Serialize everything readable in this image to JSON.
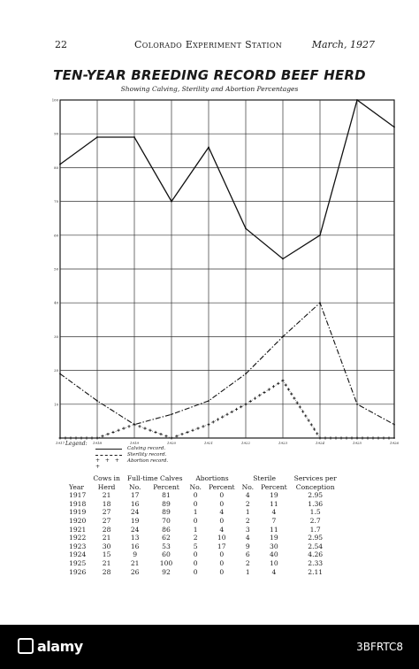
{
  "running_head": {
    "page_number": "22",
    "station": "Colorado Experiment Station",
    "date": "March, 1927"
  },
  "chart_data": {
    "type": "line",
    "title": "TEN-YEAR BREEDING RECORD BEEF HERD",
    "subtitle": "Showing Calving, Sterility and Abortion Percentages",
    "x": [
      "1917",
      "1918",
      "1919",
      "1920",
      "1921",
      "1922",
      "1923",
      "1924",
      "1925",
      "1926"
    ],
    "ylim": [
      0,
      100
    ],
    "y_ticks": [
      10,
      20,
      30,
      40,
      50,
      60,
      70,
      80,
      90,
      100
    ],
    "grid": true,
    "series": [
      {
        "name": "Calving record.",
        "style": "solid",
        "values": [
          81,
          89,
          89,
          70,
          86,
          62,
          53,
          60,
          100,
          92
        ]
      },
      {
        "name": "Sterility record.",
        "style": "dash-dot",
        "values": [
          19,
          11,
          4,
          7,
          11,
          19,
          30,
          40,
          10,
          4
        ]
      },
      {
        "name": "Abortion record.",
        "style": "cross",
        "values": [
          0,
          0,
          4,
          0,
          4,
          10,
          17,
          0,
          0,
          0
        ]
      }
    ],
    "legend_title": "Legend:",
    "legend_position": "bottom-left"
  },
  "table": {
    "group_headers": {
      "cows_in": "Cows in",
      "full_time_calves": "Full-time Calves",
      "abortions": "Abortions",
      "sterile": "Sterile",
      "services_per": "Services per"
    },
    "sub_headers": [
      "Year",
      "Herd",
      "No.",
      "Percent",
      "No.",
      "Percent",
      "No.",
      "Percent",
      "Conception"
    ],
    "rows": [
      [
        "1917",
        "21",
        "17",
        "81",
        "0",
        "0",
        "4",
        "19",
        "2.95"
      ],
      [
        "1918",
        "18",
        "16",
        "89",
        "0",
        "0",
        "2",
        "11",
        "1.36"
      ],
      [
        "1919",
        "27",
        "24",
        "89",
        "1",
        "4",
        "1",
        "4",
        "1.5"
      ],
      [
        "1920",
        "27",
        "19",
        "70",
        "0",
        "0",
        "2",
        "7",
        "2.7"
      ],
      [
        "1921",
        "28",
        "24",
        "86",
        "1",
        "4",
        "3",
        "11",
        "1.7"
      ],
      [
        "1922",
        "21",
        "13",
        "62",
        "2",
        "10",
        "4",
        "19",
        "2.95"
      ],
      [
        "1923",
        "30",
        "16",
        "53",
        "5",
        "17",
        "9",
        "30",
        "2.54"
      ],
      [
        "1924",
        "15",
        "9",
        "60",
        "0",
        "0",
        "6",
        "40",
        "4.26"
      ],
      [
        "1925",
        "21",
        "21",
        "100",
        "0",
        "0",
        "2",
        "10",
        "2.33"
      ],
      [
        "1926",
        "28",
        "26",
        "92",
        "0",
        "0",
        "1",
        "4",
        "2.11"
      ]
    ]
  },
  "watermark": {
    "brand": "alamy",
    "image_id": "3BFRTC8"
  }
}
